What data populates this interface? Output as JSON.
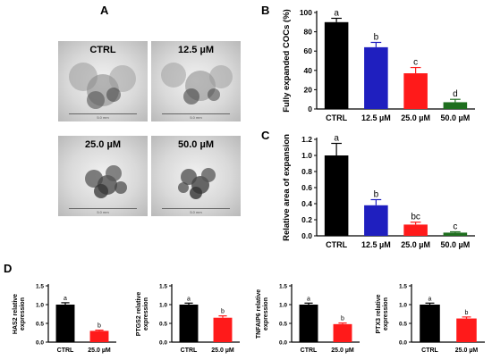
{
  "panels": {
    "a": {
      "letter": "A",
      "images": [
        "CTRL",
        "12.5 µM",
        "25.0 µM",
        "50.0 µM"
      ],
      "scale_text": "5.0 mm"
    },
    "b": {
      "letter": "B"
    },
    "c": {
      "letter": "C"
    },
    "d": {
      "letter": "D"
    }
  },
  "colors": {
    "black": "#000000",
    "blue": "#1f1fbf",
    "red": "#ff1a1a",
    "green": "#1e6e1e"
  },
  "chart_data": [
    {
      "id": "B",
      "type": "bar",
      "categories": [
        "CTRL",
        "12.5 µM",
        "25.0 µM",
        "50.0 µM"
      ],
      "values": [
        90,
        64,
        37,
        7
      ],
      "errors": [
        4,
        5,
        6,
        3
      ],
      "letters": [
        "a",
        "b",
        "c",
        "d"
      ],
      "colors": [
        "#000000",
        "#1f1fbf",
        "#ff1a1a",
        "#1e6e1e"
      ],
      "ylabel": "Fully expanded COCs (%)",
      "ylim": [
        0,
        100
      ],
      "yticks": [
        0,
        20,
        40,
        60,
        80,
        100
      ],
      "yticklabels": [
        "0",
        "20",
        "40",
        "60",
        "80",
        "100"
      ]
    },
    {
      "id": "C",
      "type": "bar",
      "categories": [
        "CTRL",
        "12.5 µM",
        "25.0 µM",
        "50.0 µM"
      ],
      "values": [
        1.0,
        0.38,
        0.14,
        0.04
      ],
      "errors": [
        0.15,
        0.07,
        0.03,
        0.01
      ],
      "letters": [
        "a",
        "b",
        "bc",
        "c"
      ],
      "colors": [
        "#000000",
        "#1f1fbf",
        "#ff1a1a",
        "#1e6e1e"
      ],
      "ylabel": "Relative area of expansion",
      "ylim": [
        0,
        1.2
      ],
      "yticks": [
        0,
        0.2,
        0.4,
        0.6,
        0.8,
        1.0,
        1.2
      ],
      "yticklabels": [
        "0.0",
        "0.2",
        "0.4",
        "0.6",
        "0.8",
        "1.0",
        "1.2"
      ]
    },
    {
      "id": "D1",
      "type": "bar",
      "categories": [
        "CTRL",
        "25.0 µM"
      ],
      "values": [
        1.0,
        0.3
      ],
      "errors": [
        0.05,
        0.02
      ],
      "letters": [
        "a",
        "b"
      ],
      "colors": [
        "#000000",
        "#ff1a1a"
      ],
      "ylabel": "HAS2 relative expression",
      "ylim": [
        0,
        1.5
      ],
      "yticks": [
        0,
        0.5,
        1.0,
        1.5
      ],
      "yticklabels": [
        "0.0",
        "0.5",
        "1.0",
        "1.5"
      ]
    },
    {
      "id": "D2",
      "type": "bar",
      "categories": [
        "CTRL",
        "25.0 µM"
      ],
      "values": [
        1.0,
        0.65
      ],
      "errors": [
        0.04,
        0.05
      ],
      "letters": [
        "a",
        "b"
      ],
      "colors": [
        "#000000",
        "#ff1a1a"
      ],
      "ylabel": "PTGS2 relative expression",
      "ylim": [
        0,
        1.5
      ],
      "yticks": [
        0,
        0.5,
        1.0,
        1.5
      ],
      "yticklabels": [
        "0.0",
        "0.5",
        "1.0",
        "1.5"
      ]
    },
    {
      "id": "D3",
      "type": "bar",
      "categories": [
        "CTRL",
        "25.0 µM"
      ],
      "values": [
        1.0,
        0.48
      ],
      "errors": [
        0.04,
        0.03
      ],
      "letters": [
        "a",
        "b"
      ],
      "colors": [
        "#000000",
        "#ff1a1a"
      ],
      "ylabel": "TNFAIP6 relative expression",
      "ylim": [
        0,
        1.5
      ],
      "yticks": [
        0,
        0.5,
        1.0,
        1.5
      ],
      "yticklabels": [
        "0.0",
        "0.5",
        "1.0",
        "1.5"
      ]
    },
    {
      "id": "D4",
      "type": "bar",
      "categories": [
        "CTRL",
        "25.0 µM"
      ],
      "values": [
        1.0,
        0.63
      ],
      "errors": [
        0.04,
        0.04
      ],
      "letters": [
        "a",
        "b"
      ],
      "colors": [
        "#000000",
        "#ff1a1a"
      ],
      "ylabel": "PTX3 relative expression",
      "ylim": [
        0,
        1.5
      ],
      "yticks": [
        0,
        0.5,
        1.0,
        1.5
      ],
      "yticklabels": [
        "0.0",
        "0.5",
        "1.0",
        "1.5"
      ]
    }
  ]
}
